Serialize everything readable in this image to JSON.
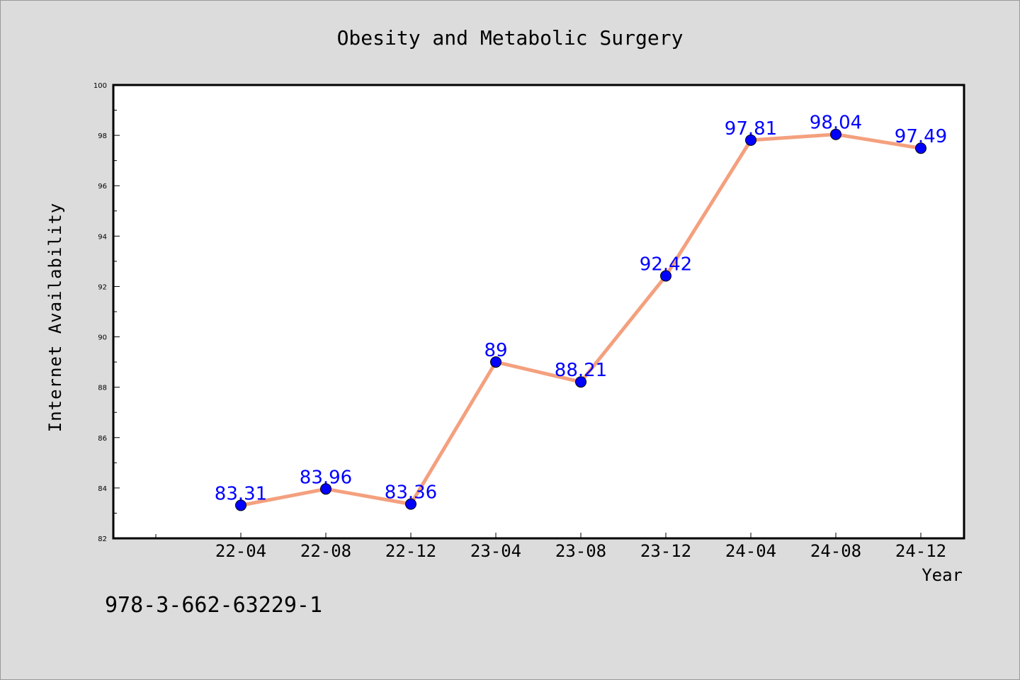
{
  "chart_data": {
    "type": "line",
    "title": "Obesity and Metabolic Surgery",
    "xlabel": "Year",
    "ylabel": "Internet Availability",
    "categories": [
      "22-04",
      "22-08",
      "22-12",
      "23-04",
      "23-08",
      "23-12",
      "24-04",
      "24-08",
      "24-12"
    ],
    "values": [
      83.31,
      83.96,
      83.36,
      89,
      88.21,
      92.42,
      97.81,
      98.04,
      97.49
    ],
    "data_labels": [
      "83.31",
      "83.96",
      "83.36",
      "89",
      "88.21",
      "92.42",
      "97.81",
      "98.04",
      "97.49"
    ],
    "ylim": [
      82,
      100
    ],
    "yticks": [
      82,
      84,
      86,
      88,
      90,
      92,
      94,
      96,
      98,
      100
    ],
    "grid": false,
    "legend": "none",
    "line_color": "#f4a07e",
    "marker_color": "#0000ff",
    "label_color": "#0000ff"
  },
  "footer": {
    "isbn": "978-3-662-63229-1"
  }
}
